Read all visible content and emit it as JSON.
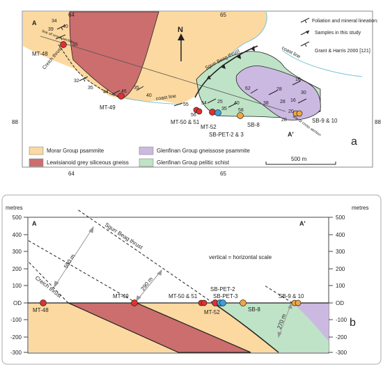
{
  "map": {
    "grid_top_left": "64",
    "grid_top_right": "65",
    "grid_bottom_left": "64",
    "grid_bottom_right": "65",
    "grid_left_row": "88",
    "grid_right_row": "88",
    "north_label": "N",
    "panel_label": "a",
    "section_start": "A",
    "section_end": "A'",
    "line_label_left": "line of cross section",
    "line_label_right": "line of cross section",
    "thrust_creich": "Creich thrust",
    "thrust_spurr": "Sgurr Beag thrust",
    "coast_line_label": "coast line",
    "coast_line_label_2": "coast line",
    "samples": {
      "mt48": "MT-48",
      "mt49": "MT-49",
      "mt5051": "MT-50 & 51",
      "mt52": "MT-52",
      "sbpet": "SB-PET-2 & 3",
      "sb8": "SB-8",
      "sb910": "SB-9 & 10"
    },
    "dips": [
      "34",
      "39",
      "40",
      "35",
      "32",
      "35",
      "44",
      "46",
      "35",
      "40",
      "55",
      "54",
      "56",
      "25",
      "35",
      "40",
      "58",
      "62",
      "28",
      "16",
      "30",
      "20",
      "28",
      "38",
      "16",
      "28"
    ],
    "key": {
      "title": "Foliation and mineral lineation:",
      "samples_label": "Samples in this study",
      "ref_label": "Grant & Harris 2000 [121]"
    },
    "scale_label": "500 m"
  },
  "legend": {
    "morar": "Morar Group psammite",
    "lewisian": "Lewisianoid grey siliceous gneiss",
    "glenfinan_psammite": "Glenfinan Group gneissose psammite",
    "glenfinan_pelitic": "Glenfinan Group pelitic schist"
  },
  "section": {
    "y_unit_left": "metres",
    "y_unit_right": "metres",
    "left_ticks": [
      "500",
      "400",
      "300",
      "200",
      "100",
      "OD",
      "-100",
      "-200",
      "-300"
    ],
    "right_ticks": [
      "500",
      "400",
      "300",
      "200",
      "100",
      "OD",
      "-100",
      "-200",
      "-300"
    ],
    "section_start": "A",
    "section_end": "A'",
    "scale_note": "vertical = horizontal scale",
    "thrust_spurr": "Sgurr Beag thrust",
    "thrust_creich": "Creich thrust",
    "dist_550": "550 m",
    "dist_290": "290 m",
    "dist_270": "270 m",
    "panel_label": "b",
    "samples": {
      "mt48": "MT-48",
      "mt49": "MT-49",
      "mt5051": "MT-50 & 51",
      "mt52": "MT-52",
      "sbpet2": "SB-PET-2",
      "sbpet3": "SB-PET-3",
      "sb8": "SB-8",
      "sb910": "SB-9 & 10"
    }
  },
  "colors": {
    "morar": "#fcd9a0",
    "lewisian": "#cc6e6e",
    "glenfinan_psammite": "#cbb9e2",
    "glenfinan_pelitic": "#bfe3c6",
    "sea": "#ffffff",
    "sample_red": "#e03030",
    "sample_blue": "#3aa0d8",
    "sample_orange": "#f2a640"
  }
}
